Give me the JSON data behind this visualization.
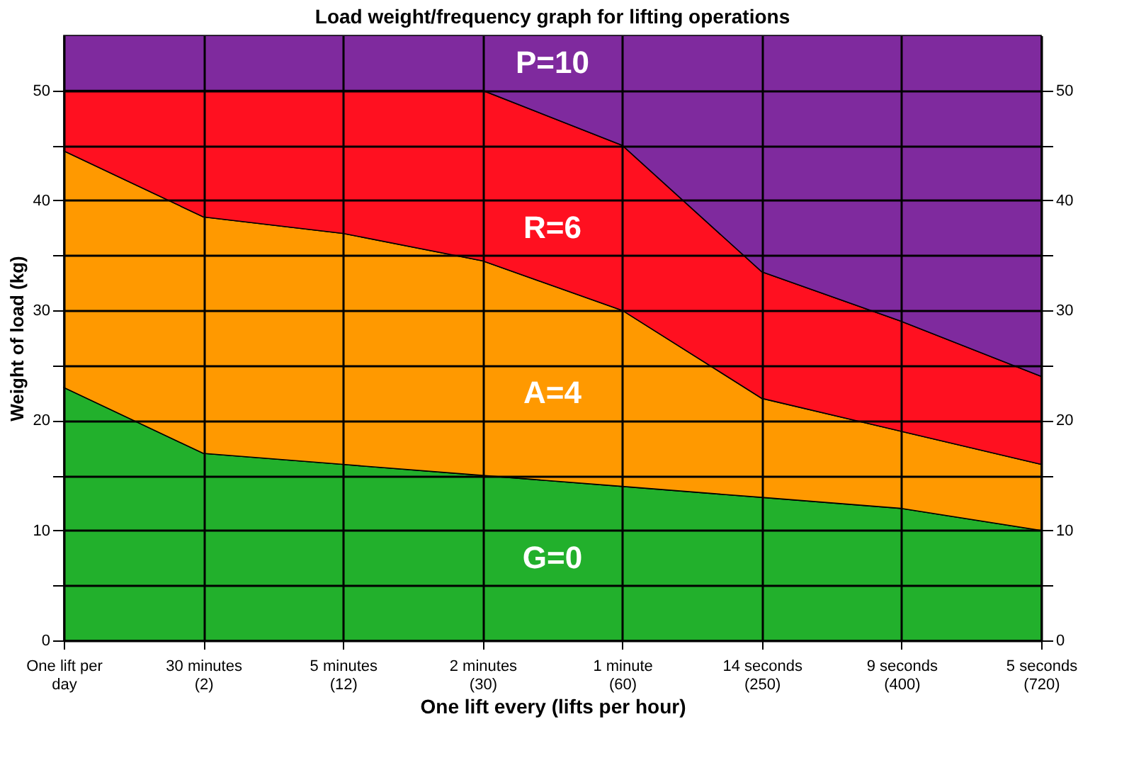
{
  "chart_data": {
    "type": "area",
    "stacked": true,
    "title": "Load weight/frequency graph for lifting operations",
    "xlabel": "One lift every (lifts per hour)",
    "ylabel": "Weight of load (kg)",
    "categories": [
      "One lift per\nday",
      "30 minutes\n(2)",
      "5 minutes\n(12)",
      "2 minutes\n(30)",
      "1 minute\n(60)",
      "14 seconds\n(250)",
      "9 seconds\n(400)",
      "5 seconds\n(720)"
    ],
    "series": [
      {
        "name": "G=0",
        "color": "#22b02c",
        "values": [
          23,
          17,
          16,
          15,
          14,
          13,
          12,
          10
        ]
      },
      {
        "name": "A=4",
        "color": "#ff9900",
        "values": [
          21.5,
          21.5,
          21,
          19.5,
          16,
          9,
          7,
          6
        ]
      },
      {
        "name": "R=6",
        "color": "#ff1020",
        "values": [
          5.5,
          11.5,
          13,
          15.5,
          15,
          11.5,
          10,
          8
        ]
      },
      {
        "name": "P=10",
        "color": "#7f2a9e",
        "values": [
          5,
          5,
          5,
          5,
          10,
          21.5,
          26,
          31
        ]
      }
    ],
    "ylim": [
      0,
      55
    ],
    "yticks": [
      0,
      {
        "value": 5,
        "label": null
      },
      10,
      {
        "value": 15,
        "label": null
      },
      20,
      {
        "value": 25,
        "label": null
      },
      30,
      {
        "value": 35,
        "label": null
      },
      40,
      {
        "value": 45,
        "label": null
      },
      50
    ],
    "y2lim": [
      0,
      55
    ],
    "y2ticks": [
      0,
      {
        "value": 5,
        "label": null
      },
      10,
      {
        "value": 15,
        "label": null
      },
      20,
      {
        "value": 25,
        "label": null
      },
      30,
      {
        "value": 35,
        "label": null
      },
      40,
      {
        "value": 45,
        "label": null
      },
      50
    ],
    "grid": true,
    "legend": false
  }
}
